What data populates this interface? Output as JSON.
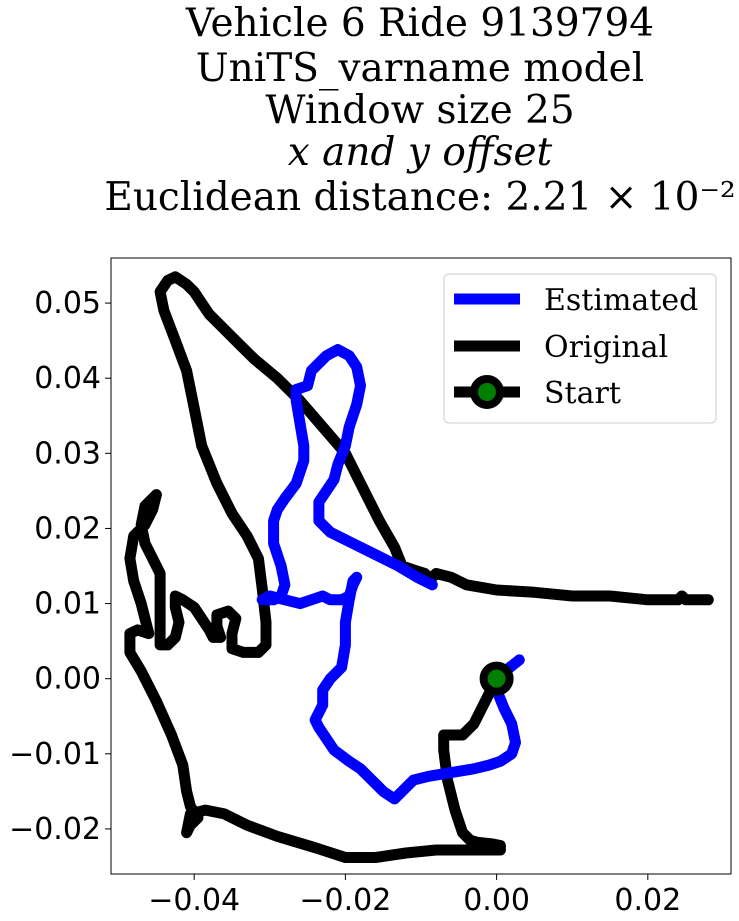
{
  "chart_data": {
    "type": "line",
    "title_lines": [
      "Vehicle 6 Ride 9139794",
      "UniTS_varname model",
      "Window size 25",
      "x and y offset",
      "Euclidean distance: 2.21 × 10⁻²"
    ],
    "xlabel": "",
    "ylabel": "",
    "xlim": [
      -0.051,
      0.031
    ],
    "ylim": [
      -0.026,
      0.056
    ],
    "xticks": [
      -0.04,
      -0.02,
      0.0,
      0.02
    ],
    "xtick_labels": [
      "−0.04",
      "−0.02",
      "0.00",
      "0.02"
    ],
    "yticks": [
      -0.02,
      -0.01,
      0.0,
      0.01,
      0.02,
      0.03,
      0.04,
      0.05
    ],
    "ytick_labels": [
      "−0.02",
      "−0.01",
      "0.00",
      "0.01",
      "0.02",
      "0.03",
      "0.04",
      "0.05"
    ],
    "grid": false,
    "legend_position": "upper right",
    "legend": [
      "Estimated",
      "Original",
      "Start"
    ],
    "colors": {
      "estimated": "#0000ff",
      "original": "#000000",
      "start_fill": "#008000",
      "start_edge": "#000000"
    },
    "series": [
      {
        "name": "Estimated",
        "points": [
          [
            0.003,
            0.0025
          ],
          [
            0.0005,
            0.0005
          ],
          [
            0.0,
            -0.0015
          ],
          [
            0.001,
            -0.004
          ],
          [
            0.002,
            -0.006
          ],
          [
            0.0025,
            -0.0085
          ],
          [
            0.002,
            -0.01
          ],
          [
            0.0005,
            -0.011
          ],
          [
            -0.001,
            -0.0115
          ],
          [
            -0.003,
            -0.012
          ],
          [
            -0.006,
            -0.0125
          ],
          [
            -0.009,
            -0.013
          ],
          [
            -0.011,
            -0.0135
          ],
          [
            -0.0125,
            -0.015
          ],
          [
            -0.0135,
            -0.016
          ],
          [
            -0.015,
            -0.015
          ],
          [
            -0.0165,
            -0.0135
          ],
          [
            -0.018,
            -0.012
          ],
          [
            -0.0195,
            -0.011
          ],
          [
            -0.0215,
            -0.0095
          ],
          [
            -0.0225,
            -0.008
          ],
          [
            -0.0235,
            -0.0065
          ],
          [
            -0.024,
            -0.0055
          ],
          [
            -0.023,
            -0.0035
          ],
          [
            -0.023,
            -0.0015
          ],
          [
            -0.022,
            0.0
          ],
          [
            -0.0205,
            0.0015
          ],
          [
            -0.02,
            0.0045
          ],
          [
            -0.02,
            0.0075
          ],
          [
            -0.0195,
            0.0105
          ],
          [
            -0.019,
            0.013
          ],
          [
            -0.0185,
            0.0135
          ],
          [
            -0.019,
            0.0125
          ],
          [
            -0.0195,
            0.011
          ],
          [
            -0.0205,
            0.0105
          ],
          [
            -0.022,
            0.0105
          ],
          [
            -0.023,
            0.011
          ],
          [
            -0.0245,
            0.0105
          ],
          [
            -0.026,
            0.01
          ],
          [
            -0.028,
            0.0105
          ],
          [
            -0.03,
            0.011
          ],
          [
            -0.031,
            0.0105
          ],
          [
            -0.0295,
            0.0105
          ],
          [
            -0.0285,
            0.011
          ],
          [
            -0.028,
            0.0125
          ],
          [
            -0.0285,
            0.015
          ],
          [
            -0.0295,
            0.018
          ],
          [
            -0.0295,
            0.021
          ],
          [
            -0.029,
            0.0225
          ],
          [
            -0.028,
            0.024
          ],
          [
            -0.0265,
            0.026
          ],
          [
            -0.0255,
            0.029
          ],
          [
            -0.0255,
            0.031
          ],
          [
            -0.026,
            0.034
          ],
          [
            -0.0265,
            0.037
          ],
          [
            -0.0265,
            0.0385
          ],
          [
            -0.025,
            0.039
          ],
          [
            -0.0245,
            0.041
          ],
          [
            -0.0235,
            0.042
          ],
          [
            -0.0225,
            0.043
          ],
          [
            -0.021,
            0.0438
          ],
          [
            -0.0195,
            0.043
          ],
          [
            -0.0185,
            0.0415
          ],
          [
            -0.018,
            0.039
          ],
          [
            -0.0185,
            0.0365
          ],
          [
            -0.0195,
            0.0335
          ],
          [
            -0.02,
            0.031
          ],
          [
            -0.021,
            0.0285
          ],
          [
            -0.0215,
            0.0265
          ],
          [
            -0.0235,
            0.0235
          ],
          [
            -0.0235,
            0.021
          ],
          [
            -0.022,
            0.0195
          ],
          [
            -0.019,
            0.018
          ],
          [
            -0.016,
            0.0165
          ],
          [
            -0.013,
            0.015
          ],
          [
            -0.0105,
            0.0135
          ],
          [
            -0.0085,
            0.0125
          ]
        ]
      },
      {
        "name": "Original",
        "points": [
          [
            0.028,
            0.0105
          ],
          [
            0.025,
            0.0105
          ],
          [
            0.0245,
            0.011
          ],
          [
            0.024,
            0.0105
          ],
          [
            0.02,
            0.0105
          ],
          [
            0.015,
            0.011
          ],
          [
            0.01,
            0.011
          ],
          [
            0.005,
            0.0115
          ],
          [
            0.0,
            0.0118
          ],
          [
            -0.004,
            0.0125
          ],
          [
            -0.006,
            0.0135
          ],
          [
            -0.008,
            0.014
          ],
          [
            -0.0085,
            0.0135
          ],
          [
            -0.009,
            0.0135
          ],
          [
            -0.0095,
            0.014
          ],
          [
            -0.011,
            0.0145
          ],
          [
            -0.0125,
            0.015
          ],
          [
            -0.0135,
            0.0175
          ],
          [
            -0.0155,
            0.021
          ],
          [
            -0.018,
            0.026
          ],
          [
            -0.02,
            0.03
          ],
          [
            -0.023,
            0.0335
          ],
          [
            -0.026,
            0.037
          ],
          [
            -0.029,
            0.04
          ],
          [
            -0.032,
            0.0425
          ],
          [
            -0.034,
            0.0445
          ],
          [
            -0.036,
            0.0465
          ],
          [
            -0.038,
            0.0485
          ],
          [
            -0.039,
            0.05
          ],
          [
            -0.04,
            0.0515
          ],
          [
            -0.041,
            0.0525
          ],
          [
            -0.0425,
            0.0535
          ],
          [
            -0.0435,
            0.053
          ],
          [
            -0.0445,
            0.0515
          ],
          [
            -0.044,
            0.049
          ],
          [
            -0.0425,
            0.045
          ],
          [
            -0.041,
            0.041
          ],
          [
            -0.04,
            0.036
          ],
          [
            -0.039,
            0.031
          ],
          [
            -0.037,
            0.026
          ],
          [
            -0.035,
            0.022
          ],
          [
            -0.033,
            0.019
          ],
          [
            -0.0315,
            0.016
          ],
          [
            -0.031,
            0.012
          ],
          [
            -0.0305,
            0.0075
          ],
          [
            -0.0305,
            0.0045
          ],
          [
            -0.0315,
            0.0035
          ],
          [
            -0.0335,
            0.0035
          ],
          [
            -0.035,
            0.004
          ],
          [
            -0.035,
            0.006
          ],
          [
            -0.0345,
            0.008
          ],
          [
            -0.0355,
            0.009
          ],
          [
            -0.037,
            0.0085
          ],
          [
            -0.037,
            0.007
          ],
          [
            -0.0365,
            0.0055
          ],
          [
            -0.0375,
            0.0055
          ],
          [
            -0.038,
            0.0065
          ],
          [
            -0.039,
            0.008
          ],
          [
            -0.04,
            0.0095
          ],
          [
            -0.0415,
            0.0105
          ],
          [
            -0.0425,
            0.011
          ],
          [
            -0.0425,
            0.0095
          ],
          [
            -0.042,
            0.0075
          ],
          [
            -0.0425,
            0.0055
          ],
          [
            -0.0435,
            0.0045
          ],
          [
            -0.0445,
            0.0045
          ],
          [
            -0.0445,
            0.006
          ],
          [
            -0.0445,
            0.009
          ],
          [
            -0.0445,
            0.0115
          ],
          [
            -0.0445,
            0.014
          ],
          [
            -0.0455,
            0.016
          ],
          [
            -0.0465,
            0.018
          ],
          [
            -0.047,
            0.0205
          ],
          [
            -0.0465,
            0.023
          ],
          [
            -0.045,
            0.0245
          ],
          [
            -0.0455,
            0.0225
          ],
          [
            -0.0465,
            0.0205
          ],
          [
            -0.048,
            0.019
          ],
          [
            -0.0485,
            0.016
          ],
          [
            -0.048,
            0.013
          ],
          [
            -0.047,
            0.01
          ],
          [
            -0.0465,
            0.008
          ],
          [
            -0.046,
            0.006
          ],
          [
            -0.0475,
            0.0065
          ],
          [
            -0.0485,
            0.006
          ],
          [
            -0.0485,
            0.0035
          ],
          [
            -0.047,
            0.001
          ],
          [
            -0.045,
            -0.003
          ],
          [
            -0.043,
            -0.0075
          ],
          [
            -0.0415,
            -0.0115
          ],
          [
            -0.041,
            -0.015
          ],
          [
            -0.0405,
            -0.017
          ],
          [
            -0.0395,
            -0.0185
          ],
          [
            -0.0405,
            -0.0195
          ],
          [
            -0.041,
            -0.0205
          ],
          [
            -0.0405,
            -0.018
          ],
          [
            -0.0385,
            -0.0175
          ],
          [
            -0.036,
            -0.018
          ],
          [
            -0.033,
            -0.0195
          ],
          [
            -0.029,
            -0.021
          ],
          [
            -0.024,
            -0.0225
          ],
          [
            -0.02,
            -0.0238
          ],
          [
            -0.016,
            -0.0238
          ],
          [
            -0.012,
            -0.0232
          ],
          [
            -0.008,
            -0.0228
          ],
          [
            -0.004,
            -0.0228
          ],
          [
            -0.001,
            -0.0228
          ],
          [
            0.0005,
            -0.0228
          ],
          [
            0.0005,
            -0.0222
          ],
          [
            -0.0005,
            -0.022
          ],
          [
            -0.0025,
            -0.0218
          ],
          [
            -0.0035,
            -0.0215
          ],
          [
            -0.0045,
            -0.0205
          ],
          [
            -0.0055,
            -0.0175
          ],
          [
            -0.0065,
            -0.0135
          ],
          [
            -0.007,
            -0.0095
          ],
          [
            -0.007,
            -0.0075
          ],
          [
            -0.006,
            -0.0075
          ],
          [
            -0.0045,
            -0.0075
          ],
          [
            -0.003,
            -0.006
          ],
          [
            -0.0015,
            -0.003
          ],
          [
            0.0,
            0.0
          ]
        ]
      }
    ],
    "start": {
      "name": "Start",
      "x": 0.0,
      "y": 0.0
    }
  }
}
